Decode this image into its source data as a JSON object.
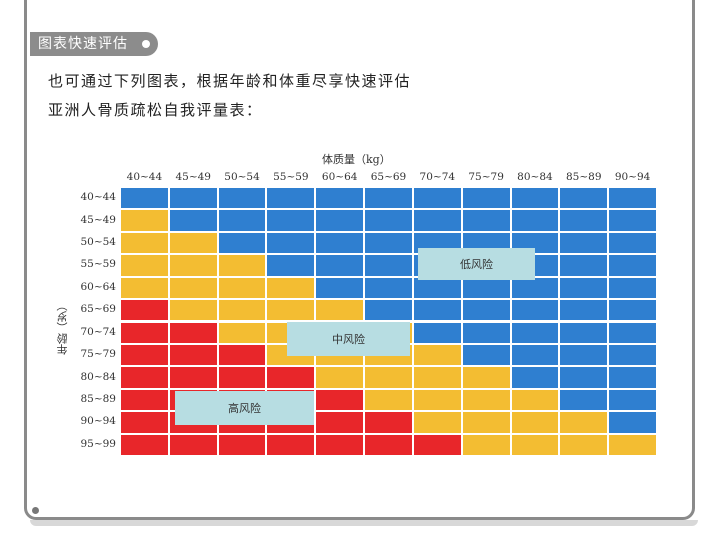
{
  "section": {
    "tag_label": "图表快速评估"
  },
  "intro": {
    "line1": "也可通过下列图表，根据年龄和体重尽享快速评估",
    "line2": "亚洲人骨质疏松自我评量表："
  },
  "colors": {
    "low": "#2f7fd0",
    "medium": "#f3bd32",
    "high": "#e8262a",
    "zone_label_bg": "#b7dde2",
    "tag_bg": "#8c8c8c"
  },
  "chart_data": {
    "type": "heatmap",
    "title": "",
    "xlabel": "体质量（kg）",
    "ylabel": "年龄（岁）",
    "x_categories": [
      "40~44",
      "45~49",
      "50~54",
      "55~59",
      "60~64",
      "65~69",
      "70~74",
      "75~79",
      "80~84",
      "85~89",
      "90~94"
    ],
    "y_categories": [
      "40~44",
      "45~49",
      "50~54",
      "55~59",
      "60~64",
      "65~69",
      "70~74",
      "75~79",
      "80~84",
      "85~89",
      "90~94",
      "95~99"
    ],
    "legend_levels": {
      "low": "低风险",
      "medium": "中风险",
      "high": "高风险"
    },
    "risk_matrix": [
      [
        "low",
        "low",
        "low",
        "low",
        "low",
        "low",
        "low",
        "low",
        "low",
        "low",
        "low"
      ],
      [
        "medium",
        "low",
        "low",
        "low",
        "low",
        "low",
        "low",
        "low",
        "low",
        "low",
        "low"
      ],
      [
        "medium",
        "medium",
        "low",
        "low",
        "low",
        "low",
        "low",
        "low",
        "low",
        "low",
        "low"
      ],
      [
        "medium",
        "medium",
        "medium",
        "low",
        "low",
        "low",
        "low",
        "low",
        "low",
        "low",
        "low"
      ],
      [
        "medium",
        "medium",
        "medium",
        "medium",
        "low",
        "low",
        "low",
        "low",
        "low",
        "low",
        "low"
      ],
      [
        "high",
        "medium",
        "medium",
        "medium",
        "medium",
        "low",
        "low",
        "low",
        "low",
        "low",
        "low"
      ],
      [
        "high",
        "high",
        "medium",
        "medium",
        "medium",
        "medium",
        "low",
        "low",
        "low",
        "low",
        "low"
      ],
      [
        "high",
        "high",
        "high",
        "medium",
        "medium",
        "medium",
        "medium",
        "low",
        "low",
        "low",
        "low"
      ],
      [
        "high",
        "high",
        "high",
        "high",
        "medium",
        "medium",
        "medium",
        "medium",
        "low",
        "low",
        "low"
      ],
      [
        "high",
        "high",
        "high",
        "high",
        "high",
        "medium",
        "medium",
        "medium",
        "medium",
        "low",
        "low"
      ],
      [
        "high",
        "high",
        "high",
        "high",
        "high",
        "high",
        "medium",
        "medium",
        "medium",
        "medium",
        "low"
      ],
      [
        "high",
        "high",
        "high",
        "high",
        "high",
        "high",
        "high",
        "medium",
        "medium",
        "medium",
        "medium"
      ]
    ]
  }
}
